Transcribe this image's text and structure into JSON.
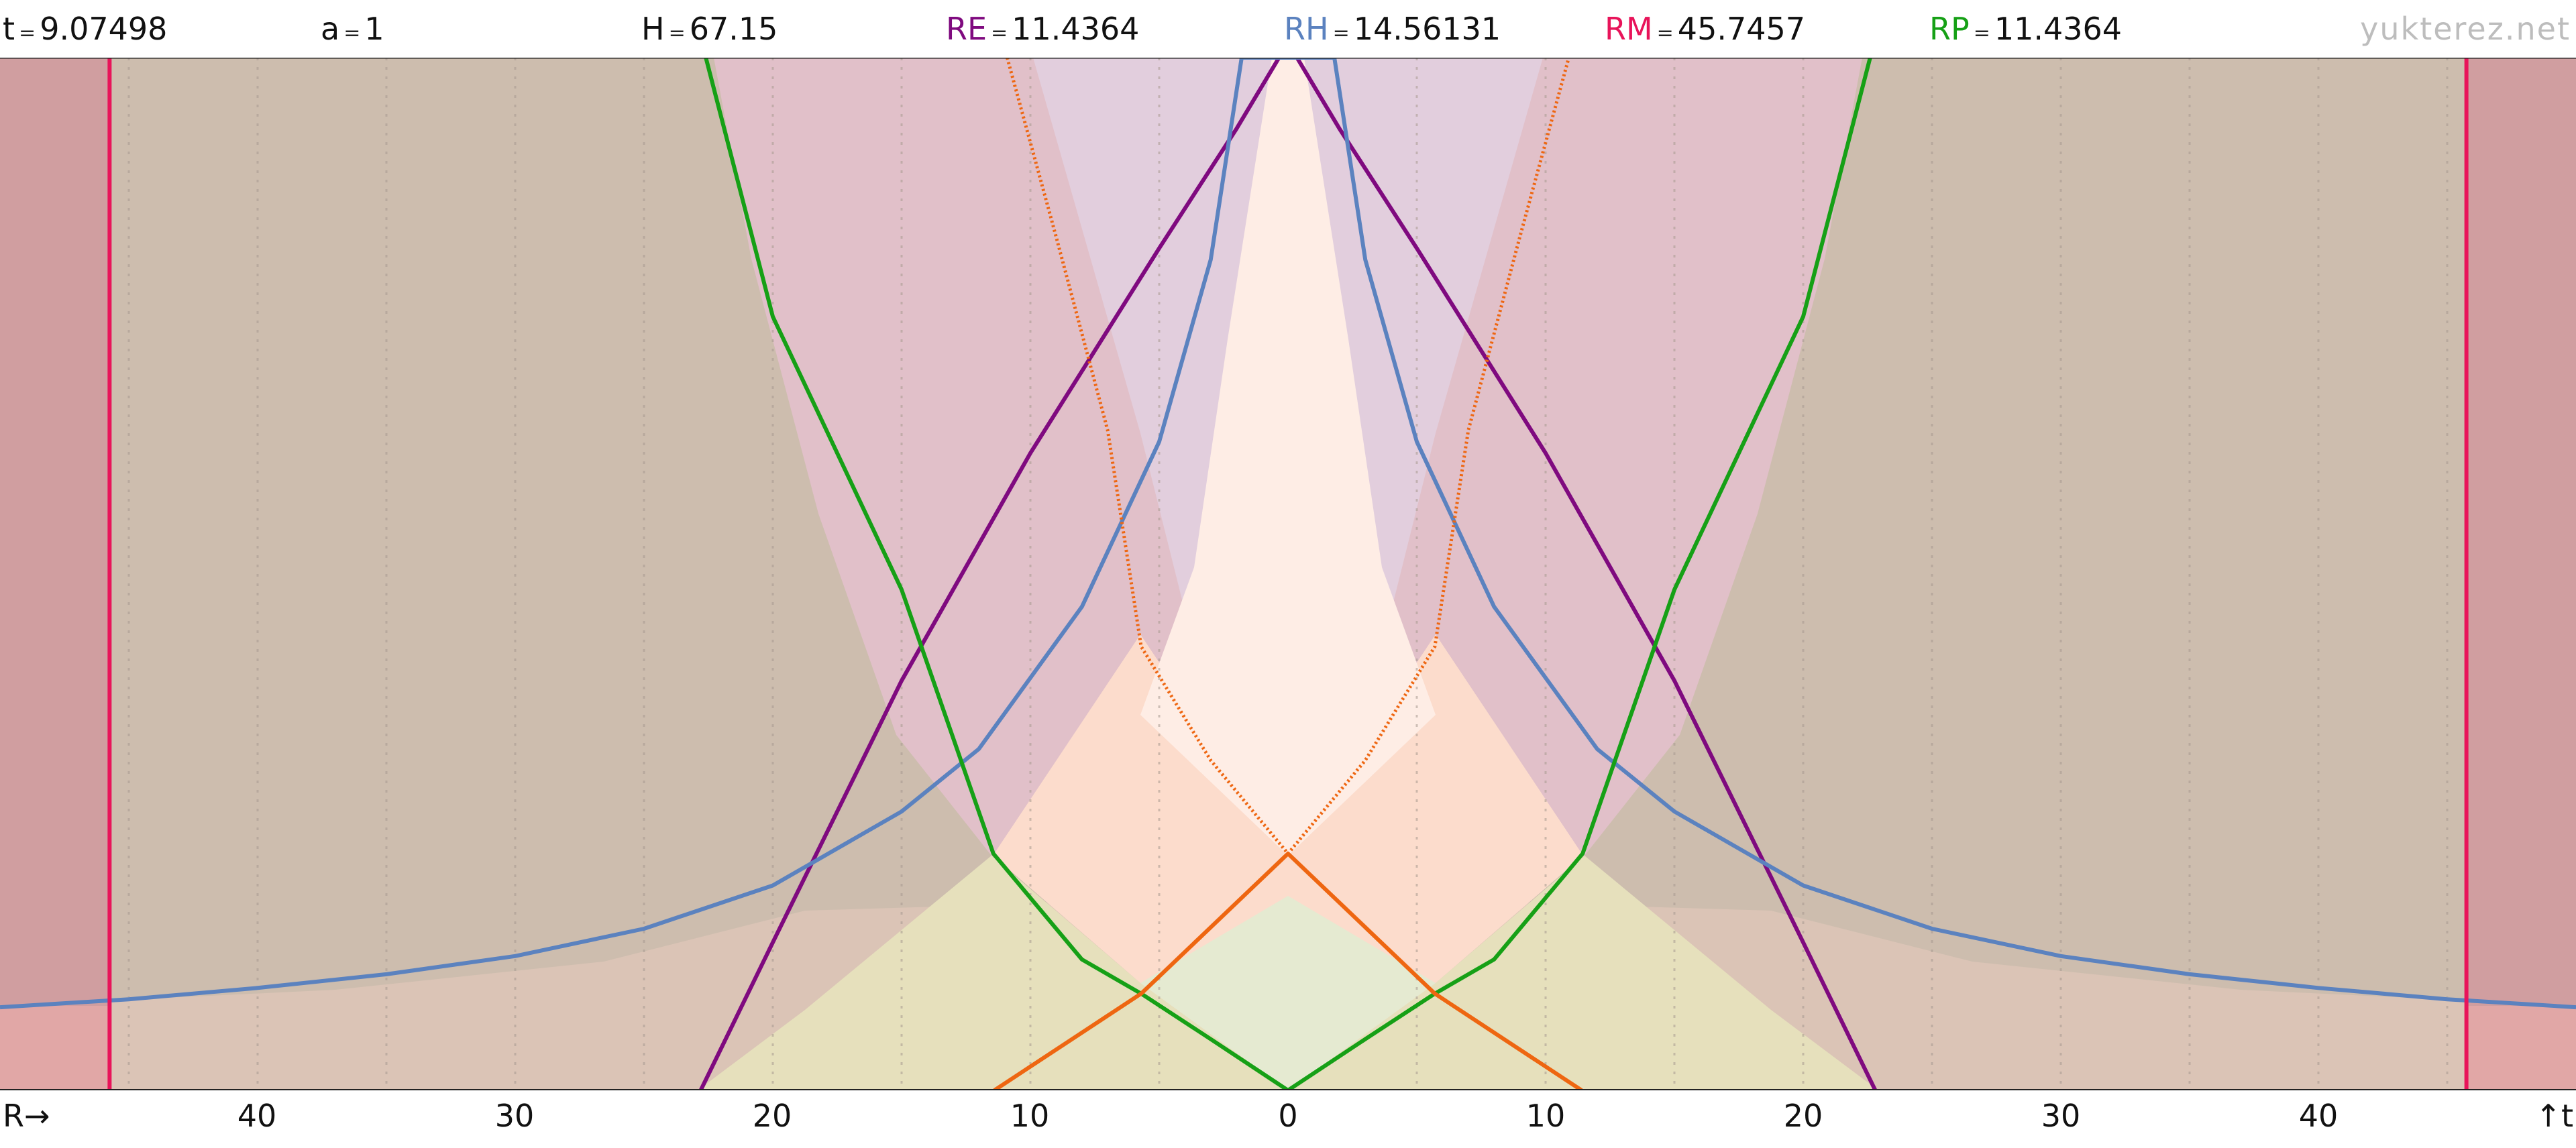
{
  "header": {
    "stats": [
      {
        "key": "t",
        "value": "9.07498",
        "color": "#111111"
      },
      {
        "key": "a",
        "value": "1",
        "color": "#111111"
      },
      {
        "key": "H",
        "value": "67.15",
        "color": "#111111"
      },
      {
        "key": "RE",
        "value": "11.4364",
        "color": "#7f0a7f"
      },
      {
        "key": "RH",
        "value": "14.56131",
        "color": "#5b82bf"
      },
      {
        "key": "RM",
        "value": "45.7457",
        "color": "#e8145a"
      },
      {
        "key": "RP",
        "value": "11.4364",
        "color": "#16a016"
      }
    ],
    "equals": "=",
    "brand": "yukterez.net"
  },
  "axes": {
    "x_label": "R→",
    "t_label": "↑t",
    "x_ticks": [
      "40",
      "30",
      "20",
      "10",
      "0",
      "10",
      "20",
      "30",
      "40"
    ],
    "x_tick_values": [
      -40,
      -30,
      -20,
      -10,
      0,
      10,
      20,
      30,
      40
    ]
  },
  "chart_data": {
    "type": "line",
    "xlim": [
      -50,
      50
    ],
    "ylim": [
      0,
      9.07498
    ],
    "grid": "vertical dotted lines every 5 units",
    "colors": {
      "hubble_outside": "#cdbdae",
      "beyond_particle_horizon": "#e1c0c9",
      "inside_event_horizon": "#e2cedd",
      "inside_light_cone": "#feede5",
      "past_light_cone_region": "#fcdccc",
      "particle_region": "#e6e0bc",
      "hubble_lower": "#dbc4b6",
      "beyond_mass_radius": "#d09ea0",
      "beyond_mass_radius_lower": "#e1a7a6",
      "light_lower": "#e5ead1"
    },
    "series": [
      {
        "name": "RE",
        "color": "#7f0a7f",
        "points": [
          [
            -22.8,
            0
          ],
          [
            -20,
            1.3
          ],
          [
            -15,
            3.6
          ],
          [
            -10,
            5.6
          ],
          [
            -5,
            7.4
          ],
          [
            -2,
            8.45
          ],
          [
            -0.35,
            9.07498
          ],
          [
            0.35,
            9.07498
          ],
          [
            2,
            8.45
          ],
          [
            5,
            7.4
          ],
          [
            10,
            5.6
          ],
          [
            15,
            3.6
          ],
          [
            20,
            1.3
          ],
          [
            22.8,
            0
          ]
        ]
      },
      {
        "name": "RH",
        "color": "#5b82bf",
        "points": [
          [
            -50,
            0.73
          ],
          [
            -45,
            0.8
          ],
          [
            -40,
            0.9
          ],
          [
            -35,
            1.02
          ],
          [
            -30,
            1.18
          ],
          [
            -25,
            1.42
          ],
          [
            -20,
            1.8
          ],
          [
            -15,
            2.45
          ],
          [
            -12,
            3.0
          ],
          [
            -8,
            4.25
          ],
          [
            -5,
            5.7
          ],
          [
            -3,
            7.3
          ],
          [
            -1.8,
            9.07498
          ],
          [
            1.8,
            9.07498
          ],
          [
            3,
            7.3
          ],
          [
            5,
            5.7
          ],
          [
            8,
            4.25
          ],
          [
            12,
            3.0
          ],
          [
            15,
            2.45
          ],
          [
            20,
            1.8
          ],
          [
            25,
            1.42
          ],
          [
            30,
            1.18
          ],
          [
            35,
            1.02
          ],
          [
            40,
            0.9
          ],
          [
            45,
            0.8
          ],
          [
            50,
            0.73
          ]
        ]
      },
      {
        "name": "RM",
        "color": "#e8145a",
        "points": [
          [
            -45.7457,
            0
          ],
          [
            -45.7457,
            9.07498
          ],
          [
            45.7457,
            0
          ],
          [
            45.7457,
            9.07498
          ]
        ]
      },
      {
        "name": "RP",
        "color": "#16a016",
        "points": [
          [
            -22.6,
            9.07498
          ],
          [
            -20,
            6.8
          ],
          [
            -15,
            4.4
          ],
          [
            -11.4364,
            2.08
          ],
          [
            -8,
            1.15
          ],
          [
            -5.7,
            0.85
          ],
          [
            -3,
            0.45
          ],
          [
            0,
            0
          ],
          [
            3,
            0.45
          ],
          [
            5.7,
            0.85
          ],
          [
            8,
            1.15
          ],
          [
            11.4364,
            2.08
          ],
          [
            15,
            4.4
          ],
          [
            20,
            6.8
          ],
          [
            22.6,
            9.07498
          ]
        ]
      },
      {
        "color": "#ee6611",
        "points": [
          [
            -11.4,
            0
          ],
          [
            -5.7,
            0.85
          ],
          [
            0,
            2.08
          ],
          [
            5.7,
            0.85
          ],
          [
            11.4,
            0
          ]
        ]
      },
      {
        "color": "#ee6611",
        "points": [
          [
            -10.9,
            9.07498
          ],
          [
            -9,
            7.5
          ],
          [
            -7,
            5.8
          ],
          [
            -5.7,
            3.9
          ],
          [
            -3,
            2.9
          ],
          [
            0,
            2.08
          ],
          [
            3,
            2.9
          ],
          [
            5.7,
            3.9
          ],
          [
            7,
            5.8
          ],
          [
            9,
            7.5
          ],
          [
            10.9,
            9.07498
          ]
        ]
      }
    ]
  }
}
